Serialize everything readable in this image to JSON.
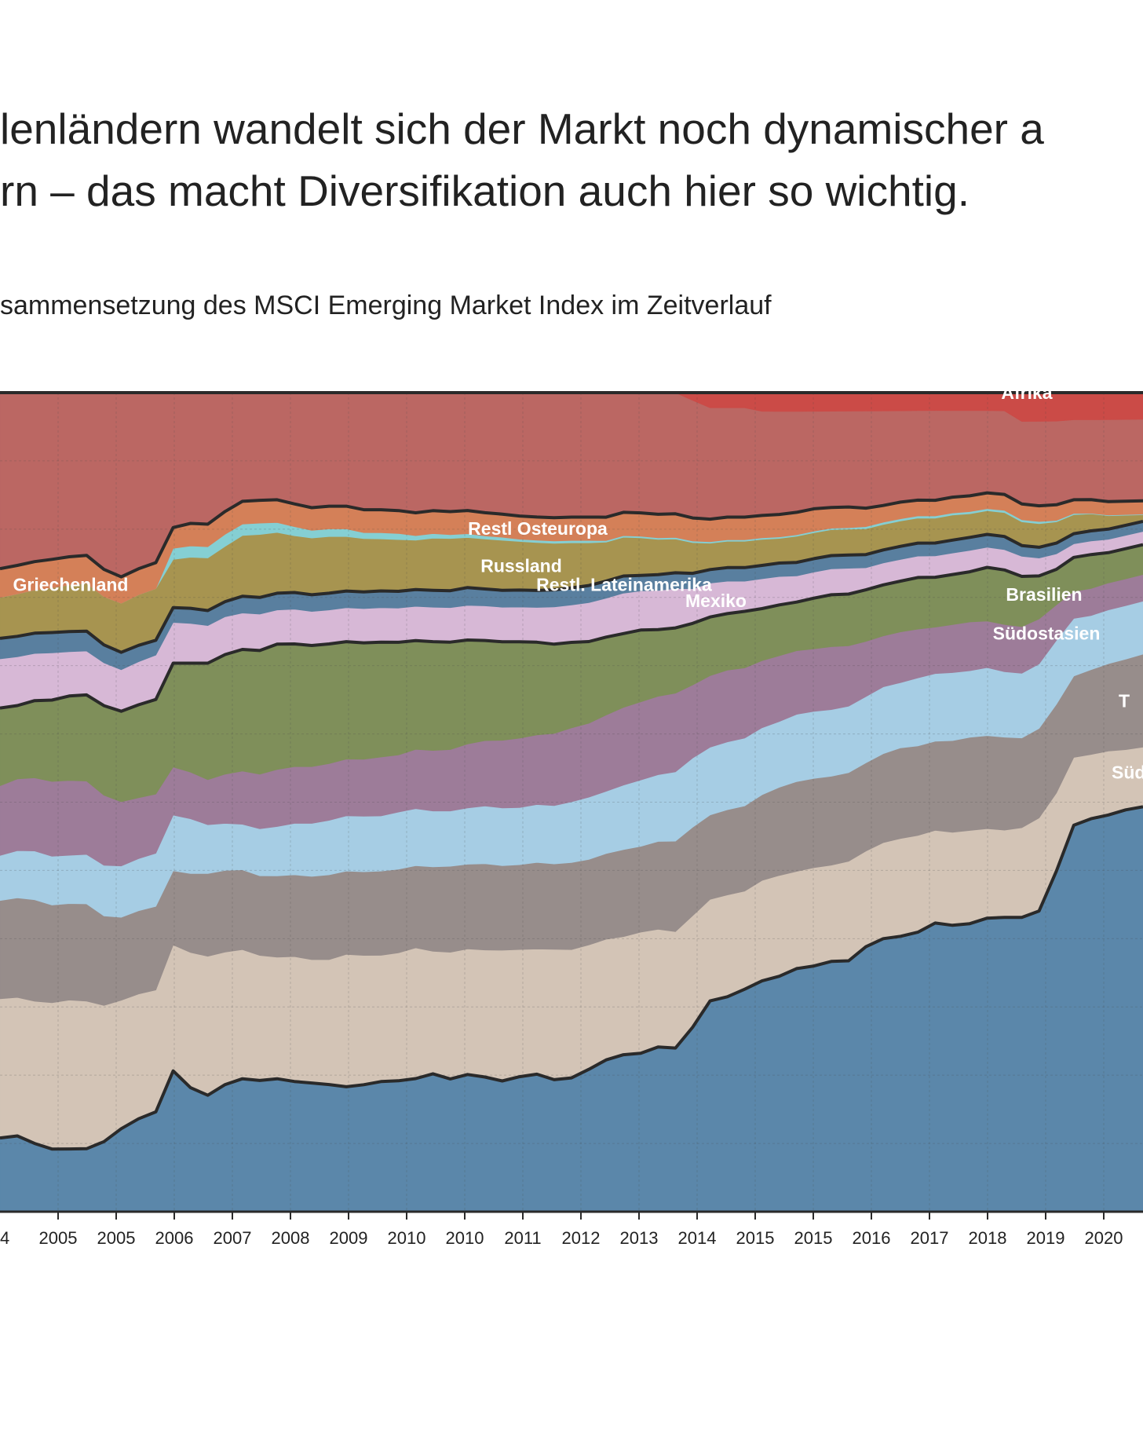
{
  "headline": {
    "line1": "lenländern wandelt sich der Markt noch dynamischer a",
    "line2": "rn – das macht Diversifikation auch hier so wichtig."
  },
  "subtitle": "sammensetzung des MSCI Emerging Market Index im Zeitverlauf",
  "chart_data": {
    "type": "area",
    "stacked": true,
    "normalized": true,
    "grid": true,
    "x_tick_labels": [
      "04",
      "2005",
      "2005",
      "2006",
      "2007",
      "2008",
      "2009",
      "2010",
      "2010",
      "2011",
      "2012",
      "2013",
      "2014",
      "2015",
      "2015",
      "2016",
      "2017",
      "2018",
      "2019",
      "2020",
      "2"
    ],
    "x_times": [
      2004.5,
      2004.75,
      2005.0,
      2005.25,
      2005.5,
      2005.75,
      2006.0,
      2006.25,
      2006.5,
      2006.75,
      2007.0,
      2007.25,
      2007.5,
      2007.75,
      2008.0,
      2008.25,
      2008.5,
      2008.75,
      2009.0,
      2009.25,
      2009.5,
      2009.75,
      2010.0,
      2010.25,
      2010.5,
      2010.75,
      2011.0,
      2011.25,
      2011.5,
      2011.75,
      2012.0,
      2012.25,
      2012.5,
      2012.75,
      2013.0,
      2013.25,
      2013.5,
      2013.75,
      2014.0,
      2014.25,
      2014.5,
      2014.75,
      2015.0,
      2015.25,
      2015.5,
      2015.75,
      2016.0,
      2016.25,
      2016.5,
      2016.75,
      2017.0,
      2017.25,
      2017.5,
      2017.75,
      2018.0,
      2018.25,
      2018.5,
      2018.75,
      2019.0,
      2019.25,
      2019.5,
      2019.75,
      2020.0,
      2020.25,
      2020.5,
      2020.75,
      2021.0
    ],
    "series": [
      {
        "name": "",
        "color": "#5b87aa",
        "values": [
          9.0,
          9.3,
          8.4,
          7.7,
          7.8,
          7.9,
          9.0,
          11.0,
          12.5,
          13.5,
          19.0,
          16.5,
          15.5,
          16.8,
          17.5,
          17.3,
          17.5,
          17.2,
          17.0,
          16.8,
          16.5,
          16.7,
          17.0,
          17.2,
          17.5,
          18.0,
          17.3,
          17.8,
          17.5,
          17.0,
          17.5,
          17.8,
          17.0,
          17.2,
          18.3,
          19.5,
          20.2,
          20.3,
          21.0,
          20.8,
          24.0,
          28.0,
          28.5,
          29.5,
          31.0,
          31.5,
          32.5,
          33.0,
          33.8,
          34.0,
          36.0,
          37.5,
          38.0,
          39.0,
          40.5,
          40.0,
          40.2,
          41.0,
          40.5,
          41.0,
          42.0,
          48.0,
          57.0,
          58.0,
          59.0,
          60.0,
          61.0
        ]
      },
      {
        "name": "Südkorea",
        "color": "#d3c4b6",
        "values": [
          17.0,
          17.0,
          17.5,
          18.0,
          18.5,
          18.5,
          17.5,
          17.0,
          16.8,
          16.5,
          17.0,
          18.0,
          18.5,
          17.5,
          17.0,
          16.5,
          16.0,
          16.5,
          16.3,
          16.5,
          17.5,
          17.0,
          16.5,
          16.8,
          17.2,
          16.0,
          16.5,
          16.3,
          16.5,
          17.0,
          16.5,
          16.2,
          16.8,
          16.5,
          16.0,
          15.5,
          15.2,
          15.5,
          15.0,
          14.8,
          14.5,
          13.5,
          13.5,
          13.0,
          13.5,
          13.5,
          13.0,
          13.2,
          13.0,
          13.5,
          13.0,
          13.2,
          13.5,
          13.5,
          13.0,
          13.0,
          13.0,
          12.5,
          12.0,
          12.5,
          13.0,
          11.0,
          10.0,
          9.5,
          9.5,
          9.0,
          9.0
        ]
      },
      {
        "name": "Taiwan",
        "color": "#978d8b",
        "values": [
          12.0,
          12.2,
          12.5,
          12.0,
          12.0,
          12.2,
          11.5,
          11.0,
          11.2,
          11.3,
          10.0,
          10.5,
          11.0,
          10.8,
          10.5,
          10.5,
          10.7,
          10.8,
          11.0,
          11.2,
          11.0,
          11.0,
          11.0,
          11.0,
          10.8,
          11.0,
          11.2,
          11.0,
          11.2,
          11.0,
          11.0,
          11.2,
          11.0,
          11.2,
          11.0,
          11.0,
          11.2,
          11.0,
          11.2,
          11.5,
          11.5,
          11.2,
          11.3,
          11.3,
          11.5,
          11.8,
          12.0,
          12.0,
          12.0,
          12.0,
          12.0,
          12.2,
          12.5,
          12.5,
          12.5,
          12.8,
          13.0,
          13.0,
          12.8,
          12.5,
          12.5,
          12.5,
          12.0,
          12.5,
          13.0,
          13.5,
          14.0
        ]
      },
      {
        "name": "Indien",
        "color": "#a6cde4",
        "values": [
          5.5,
          5.8,
          6.0,
          6.0,
          6.0,
          6.2,
          6.5,
          6.8,
          7.0,
          7.2,
          7.5,
          7.3,
          6.5,
          6.2,
          6.0,
          6.2,
          6.5,
          6.8,
          7.0,
          7.2,
          7.3,
          7.3,
          7.2,
          7.5,
          7.5,
          7.3,
          7.2,
          7.3,
          7.5,
          7.5,
          7.4,
          7.5,
          7.5,
          7.8,
          8.0,
          8.0,
          8.3,
          8.5,
          8.5,
          8.8,
          9.0,
          9.0,
          9.0,
          9.0,
          9.0,
          8.8,
          9.0,
          9.0,
          9.0,
          9.0,
          9.0,
          9.2,
          9.0,
          9.5,
          9.5,
          9.5,
          9.3,
          9.5,
          9.0,
          9.0,
          9.0,
          9.0,
          8.5,
          8.0,
          8.0,
          8.0,
          8.0
        ]
      },
      {
        "name": "Südostasien",
        "color": "#9d7c99",
        "values": [
          8.5,
          8.8,
          9.0,
          9.2,
          9.3,
          9.2,
          9.0,
          8.5,
          8.2,
          8.0,
          6.5,
          6.2,
          6.0,
          6.5,
          7.0,
          7.2,
          7.5,
          7.5,
          7.5,
          7.5,
          7.5,
          7.5,
          7.7,
          7.5,
          7.8,
          7.9,
          8.0,
          8.3,
          8.5,
          8.8,
          9.0,
          9.0,
          9.3,
          9.5,
          9.5,
          9.8,
          10.0,
          10.0,
          10.0,
          10.0,
          9.5,
          9.5,
          9.5,
          9.3,
          9.0,
          8.8,
          8.5,
          8.4,
          8.5,
          8.2,
          7.5,
          7.0,
          7.0,
          6.8,
          6.5,
          6.7,
          6.8,
          6.5,
          6.5,
          6.5,
          6.3,
          5.0,
          4.0,
          4.0,
          4.0,
          4.0,
          4.0
        ]
      },
      {
        "name": "Brasilien",
        "color": "#7f8f5a",
        "values": [
          9.5,
          9.0,
          9.5,
          10.0,
          10.5,
          10.8,
          11.5,
          12.0,
          12.5,
          12.8,
          14.0,
          14.5,
          15.5,
          15.8,
          16.0,
          16.3,
          16.5,
          16.2,
          16.0,
          15.8,
          15.5,
          15.3,
          15.0,
          14.8,
          14.3,
          14.2,
          14.0,
          13.5,
          13.0,
          12.8,
          12.5,
          12.0,
          11.5,
          11.0,
          10.5,
          10.0,
          9.5,
          9.2,
          8.5,
          8.3,
          8.0,
          7.8,
          7.5,
          7.5,
          7.0,
          6.8,
          6.5,
          6.8,
          7.0,
          7.0,
          7.0,
          7.0,
          7.0,
          7.2,
          7.0,
          7.0,
          7.0,
          7.5,
          7.5,
          7.0,
          6.0,
          5.0,
          5.0,
          5.0,
          4.5,
          4.5,
          4.5
        ]
      },
      {
        "name": "Mexiko",
        "color": "#d7b8d6",
        "values": [
          6.0,
          6.0,
          5.8,
          5.8,
          5.5,
          5.5,
          5.5,
          5.5,
          5.8,
          6.0,
          5.5,
          5.3,
          5.0,
          5.0,
          4.8,
          4.8,
          4.5,
          4.6,
          4.5,
          4.5,
          4.5,
          4.5,
          4.5,
          4.5,
          4.5,
          4.5,
          4.5,
          4.5,
          4.5,
          4.5,
          4.5,
          4.5,
          4.8,
          4.8,
          5.0,
          5.0,
          5.2,
          5.0,
          5.0,
          5.0,
          4.5,
          4.5,
          4.3,
          4.0,
          4.0,
          3.8,
          3.5,
          3.5,
          3.5,
          3.5,
          3.0,
          3.0,
          3.0,
          3.0,
          3.0,
          3.0,
          3.0,
          2.8,
          2.8,
          2.8,
          2.5,
          2.2,
          2.0,
          2.0,
          2.0,
          2.0,
          2.0
        ]
      },
      {
        "name": "Restl. Lateinamerika",
        "color": "#597f9f",
        "values": [
          2.5,
          2.5,
          2.5,
          2.5,
          2.5,
          2.5,
          2.3,
          2.3,
          2.2,
          2.0,
          2.0,
          2.0,
          2.0,
          2.0,
          2.2,
          2.2,
          2.2,
          2.2,
          2.2,
          2.2,
          2.2,
          2.2,
          2.2,
          2.2,
          2.2,
          2.2,
          2.2,
          2.3,
          2.2,
          2.2,
          2.2,
          2.2,
          2.2,
          2.2,
          2.2,
          2.2,
          2.2,
          2.0,
          2.0,
          2.0,
          2.0,
          1.8,
          1.8,
          1.8,
          1.8,
          1.8,
          1.8,
          1.8,
          1.8,
          1.8,
          1.8,
          1.8,
          1.8,
          1.8,
          1.8,
          1.8,
          1.8,
          1.8,
          1.8,
          1.5,
          1.5,
          1.5,
          1.5,
          1.5,
          1.5,
          1.5,
          1.5
        ]
      },
      {
        "name": "Russland",
        "color": "#a79450",
        "values": [
          5.0,
          5.2,
          5.3,
          5.5,
          5.8,
          6.0,
          6.2,
          6.5,
          6.8,
          7.0,
          6.5,
          6.8,
          7.0,
          7.3,
          8.0,
          8.3,
          8.0,
          7.5,
          7.5,
          7.5,
          7.2,
          7.0,
          6.8,
          6.8,
          6.5,
          6.8,
          6.8,
          6.5,
          6.5,
          6.5,
          6.3,
          6.2,
          6.0,
          5.8,
          5.5,
          5.0,
          5.0,
          4.8,
          4.5,
          4.3,
          4.0,
          3.5,
          3.5,
          3.5,
          3.5,
          3.3,
          3.5,
          3.5,
          3.5,
          3.5,
          3.5,
          3.5,
          3.5,
          3.5,
          3.5,
          3.5,
          3.3,
          3.3,
          3.3,
          3.3,
          3.3,
          3.0,
          2.8,
          2.5,
          2.0,
          1.5,
          1.0
        ]
      },
      {
        "name": "Griechenland",
        "color": "#85cfd3",
        "values": [
          0.0,
          0.0,
          0.0,
          0.0,
          0.0,
          0.0,
          0.0,
          0.0,
          0.0,
          0.0,
          1.5,
          1.5,
          1.5,
          1.6,
          1.5,
          1.5,
          1.3,
          1.2,
          1.0,
          1.0,
          1.0,
          0.8,
          0.8,
          0.8,
          0.6,
          0.6,
          0.5,
          0.5,
          0.4,
          0.4,
          0.3,
          0.3,
          0.3,
          0.3,
          0.3,
          0.2,
          0.2,
          0.2,
          0.2,
          0.2,
          0.2,
          0.2,
          0.2,
          0.2,
          0.2,
          0.2,
          0.2,
          0.2,
          0.2,
          0.2,
          0.3,
          0.3,
          0.3,
          0.3,
          0.3,
          0.3,
          0.3,
          0.3,
          0.3,
          0.3,
          0.3,
          0.2,
          0.2,
          0.1,
          0.1,
          0.1,
          0.1
        ]
      },
      {
        "name": "Restl Osteuropa",
        "color": "#d48058",
        "values": [
          3.5,
          3.5,
          3.5,
          3.5,
          3.5,
          3.5,
          3.5,
          3.5,
          3.5,
          3.5,
          2.8,
          3.0,
          3.0,
          3.0,
          3.0,
          3.0,
          3.0,
          3.0,
          3.0,
          3.0,
          3.0,
          3.0,
          3.0,
          3.0,
          3.0,
          3.0,
          3.0,
          3.0,
          3.0,
          3.0,
          3.0,
          3.0,
          3.0,
          3.0,
          3.0,
          3.0,
          3.0,
          3.0,
          3.0,
          3.0,
          3.0,
          3.0,
          3.0,
          3.0,
          3.0,
          3.0,
          3.0,
          3.0,
          2.8,
          2.8,
          2.5,
          2.3,
          2.3,
          2.2,
          2.2,
          2.2,
          2.2,
          2.2,
          2.2,
          2.2,
          2.2,
          2.2,
          2.0,
          2.0,
          2.0,
          2.0,
          2.0
        ]
      },
      {
        "name": "",
        "color": "#bb6763",
        "values": [
          21.5,
          21.2,
          20.8,
          20.5,
          20.4,
          20.4,
          22.7,
          24.4,
          23.7,
          23.0,
          18.2,
          17.4,
          17.5,
          15.7,
          14.3,
          14.2,
          14.1,
          14.7,
          15.2,
          15.0,
          15.0,
          15.4,
          15.3,
          15.5,
          15.8,
          15.4,
          15.5,
          15.3,
          15.6,
          15.8,
          16.0,
          16.1,
          16.1,
          16.0,
          16.0,
          16.0,
          15.4,
          15.4,
          15.5,
          15.4,
          15.3,
          14.8,
          14.5,
          14.5,
          14.0,
          13.8,
          13.5,
          13.1,
          13.0,
          13.0,
          13.2,
          13.0,
          12.6,
          12.5,
          12.6,
          12.1,
          11.9,
          11.5,
          11.5,
          11.5,
          11.8,
          11.8,
          11.8,
          11.8,
          12.2,
          12.2,
          12.3
        ]
      },
      {
        "name": "Afrika",
        "color": "#cb4b47",
        "values": [
          0.0,
          0.0,
          0.0,
          0.0,
          0.0,
          0.0,
          0.0,
          0.0,
          0.0,
          0.0,
          0.0,
          0.0,
          0.0,
          0.0,
          0.0,
          0.0,
          0.0,
          0.0,
          0.0,
          0.0,
          0.0,
          0.0,
          0.0,
          0.0,
          0.0,
          0.0,
          0.0,
          0.0,
          0.0,
          0.0,
          0.0,
          0.0,
          0.0,
          0.0,
          0.0,
          0.0,
          0.0,
          0.0,
          0.0,
          0.0,
          1.0,
          2.0,
          2.0,
          2.0,
          2.5,
          2.5,
          2.5,
          2.5,
          2.5,
          2.5,
          2.5,
          2.5,
          2.5,
          2.5,
          2.5,
          2.5,
          2.5,
          2.5,
          2.5,
          4.0,
          4.0,
          4.0,
          4.0,
          4.0,
          4.0,
          4.0,
          4.0
        ]
      }
    ],
    "series_labels": [
      {
        "text": "Afrika",
        "series": "Afrika"
      },
      {
        "text": "Restl Osteuropa",
        "series": "Restl Osteuropa"
      },
      {
        "text": "Russland",
        "series": "Russland"
      },
      {
        "text": "Griechenland",
        "series": "Griechenland"
      },
      {
        "text": "Restl. Lateinamerika",
        "series": "Restl. Lateinamerika"
      },
      {
        "text": "Mexiko",
        "series": "Mexiko"
      },
      {
        "text": "Brasilien",
        "series": "Brasilien"
      },
      {
        "text": "Südostasien",
        "series": "Südostasien"
      },
      {
        "text": "T",
        "series": "Taiwan"
      },
      {
        "text": "Süd",
        "series": "Südkorea"
      }
    ],
    "boundary_lines_after_series": [
      "Brasilien",
      "Restl. Lateinamerika",
      "Restl Osteuropa",
      "",
      "Afrika"
    ],
    "boundary_line_color": "#2a2a2a"
  }
}
